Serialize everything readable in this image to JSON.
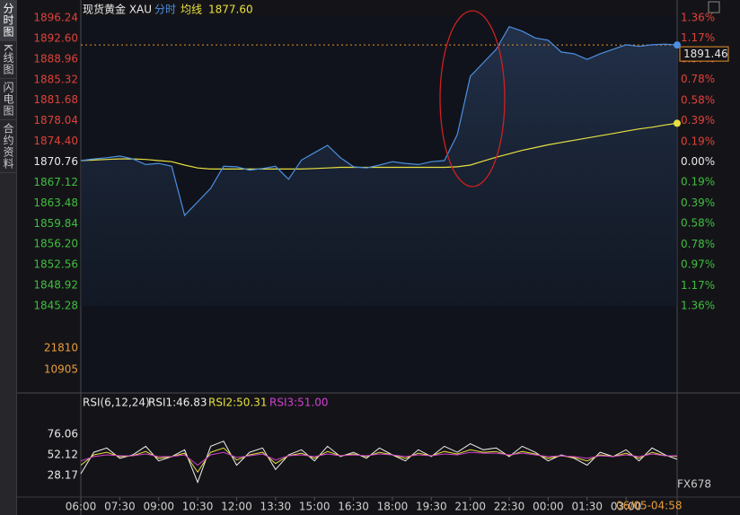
{
  "sidebar": [
    "分时图",
    "K线图",
    "闪电图",
    "合约资料"
  ],
  "timestamp": "06/05-04:58",
  "watermark": "FX678",
  "chart_data": [
    {
      "type": "line",
      "title": "现货黄金 XAU",
      "avg_value_label": "1877.60",
      "price_label": "1891.46",
      "x": [
        "06:00",
        "06:30",
        "07:00",
        "07:30",
        "08:00",
        "08:30",
        "09:00",
        "09:30",
        "10:00",
        "10:30",
        "11:00",
        "11:30",
        "12:00",
        "12:30",
        "13:00",
        "13:30",
        "14:00",
        "14:30",
        "15:00",
        "15:30",
        "16:00",
        "16:30",
        "17:00",
        "17:30",
        "18:00",
        "18:30",
        "19:00",
        "19:30",
        "20:00",
        "20:30",
        "21:00",
        "21:30",
        "22:00",
        "22:30",
        "23:00",
        "23:30",
        "00:00",
        "00:30",
        "01:00",
        "01:30",
        "02:00",
        "02:30",
        "03:00",
        "03:30",
        "04:00",
        "04:30",
        "04:58"
      ],
      "xticks": [
        "06:00",
        "07:30",
        "09:00",
        "10:30",
        "12:00",
        "13:30",
        "15:00",
        "16:30",
        "18:00",
        "19:30",
        "21:00",
        "22:30",
        "00:00",
        "01:30",
        "03:00"
      ],
      "series": [
        {
          "name": "分时",
          "color": "#4d8fe0",
          "values": [
            1871.0,
            1871.3,
            1871.5,
            1871.8,
            1871.3,
            1870.3,
            1870.5,
            1870.0,
            1861.3,
            1863.7,
            1866.1,
            1870.0,
            1869.9,
            1869.3,
            1869.6,
            1870.0,
            1867.7,
            1871.1,
            1872.4,
            1873.7,
            1871.5,
            1869.9,
            1869.7,
            1870.2,
            1870.8,
            1870.5,
            1870.3,
            1870.8,
            1871.0,
            1875.6,
            1885.9,
            1888.3,
            1890.7,
            1894.7,
            1893.9,
            1892.7,
            1892.3,
            1890.2,
            1889.9,
            1888.9,
            1889.9,
            1890.7,
            1891.5,
            1891.2,
            1891.5,
            1891.6,
            1891.46
          ]
        },
        {
          "name": "均线",
          "color": "#e8e040",
          "values": [
            1871.0,
            1871.1,
            1871.2,
            1871.3,
            1871.3,
            1871.2,
            1871.0,
            1870.8,
            1870.2,
            1869.7,
            1869.5,
            1869.5,
            1869.5,
            1869.5,
            1869.5,
            1869.5,
            1869.5,
            1869.5,
            1869.6,
            1869.7,
            1869.8,
            1869.8,
            1869.8,
            1869.8,
            1869.8,
            1869.8,
            1869.8,
            1869.8,
            1869.8,
            1869.9,
            1870.2,
            1870.9,
            1871.6,
            1872.2,
            1872.8,
            1873.3,
            1873.8,
            1874.2,
            1874.6,
            1875.0,
            1875.4,
            1875.8,
            1876.2,
            1876.6,
            1876.9,
            1877.3,
            1877.6
          ]
        }
      ],
      "ylim": [
        1845.28,
        1896.24
      ],
      "yticks": [
        1896.24,
        {
          "value": 1892.6,
          "label": "1892.60"
        },
        1888.96,
        1885.32,
        1881.68,
        1878.04,
        {
          "value": 1874.4,
          "label": "1874.40"
        },
        1870.76,
        1867.12,
        1863.48,
        1859.84,
        {
          "value": 1856.2,
          "label": "1856.20"
        },
        1852.56,
        1848.92,
        1845.28
      ],
      "y2lim": [
        -1.36,
        1.36
      ],
      "y2ticks": [
        {
          "value": 1.36,
          "label": "1.36%"
        },
        {
          "value": 1.17,
          "label": "1.17%"
        },
        {
          "value": 0.97,
          "label": "0.97%"
        },
        {
          "value": 0.78,
          "label": "0.78%"
        },
        {
          "value": 0.58,
          "label": "0.58%"
        },
        {
          "value": 0.39,
          "label": "0.39%"
        },
        {
          "value": 0.19,
          "label": "0.19%"
        },
        {
          "value": 0,
          "label": "0.00%"
        },
        {
          "value": -0.19,
          "label": "0.19%"
        },
        {
          "value": -0.39,
          "label": "0.39%"
        },
        {
          "value": -0.58,
          "label": "0.58%"
        },
        {
          "value": -0.78,
          "label": "0.78%"
        },
        {
          "value": -0.97,
          "label": "0.97%"
        },
        {
          "value": -1.17,
          "label": "1.17%"
        },
        {
          "value": -1.36,
          "label": "1.36%"
        }
      ],
      "up_color": "#e0413a",
      "down_color": "#3fbf3f",
      "flat_color": "#e8e8e8",
      "price_line_color": "#e8902a"
    },
    {
      "type": "bar",
      "ylim": [
        0,
        39000
      ],
      "yticks": [
        21810,
        10905
      ],
      "tick_color": "#e89b3b"
    },
    {
      "type": "line",
      "title": "RSI(6,12,24)",
      "ylim": [
        5,
        99
      ],
      "yticks": [
        76.06,
        52.12,
        28.17
      ],
      "series": [
        {
          "name": "RSI1:46.83",
          "color": "#f0f0f0",
          "values": [
            30,
            55,
            60,
            48,
            52,
            62,
            45,
            50,
            58,
            20,
            62,
            68,
            40,
            55,
            60,
            35,
            52,
            58,
            45,
            62,
            50,
            55,
            48,
            60,
            52,
            45,
            58,
            50,
            62,
            55,
            65,
            58,
            60,
            50,
            62,
            55,
            45,
            52,
            48,
            40,
            55,
            50,
            58,
            45,
            60,
            52,
            46.83
          ]
        },
        {
          "name": "RSI2:50.31",
          "color": "#e8e040",
          "values": [
            40,
            52,
            55,
            50,
            51,
            56,
            48,
            50,
            54,
            32,
            55,
            60,
            46,
            52,
            55,
            42,
            51,
            54,
            48,
            56,
            51,
            53,
            50,
            55,
            52,
            48,
            54,
            51,
            56,
            53,
            58,
            55,
            56,
            51,
            56,
            53,
            48,
            51,
            49,
            45,
            52,
            50,
            54,
            48,
            55,
            51,
            50.31
          ]
        },
        {
          "name": "RSI3:51.00",
          "color": "#d040d0",
          "values": [
            45,
            50,
            52,
            51,
            51,
            53,
            50,
            50,
            52,
            40,
            52,
            55,
            49,
            51,
            53,
            46,
            51,
            52,
            50,
            53,
            51,
            52,
            51,
            53,
            52,
            50,
            52,
            51,
            53,
            52,
            55,
            54,
            54,
            52,
            54,
            52,
            50,
            51,
            50,
            48,
            51,
            50,
            52,
            50,
            53,
            51,
            51
          ]
        }
      ]
    }
  ]
}
